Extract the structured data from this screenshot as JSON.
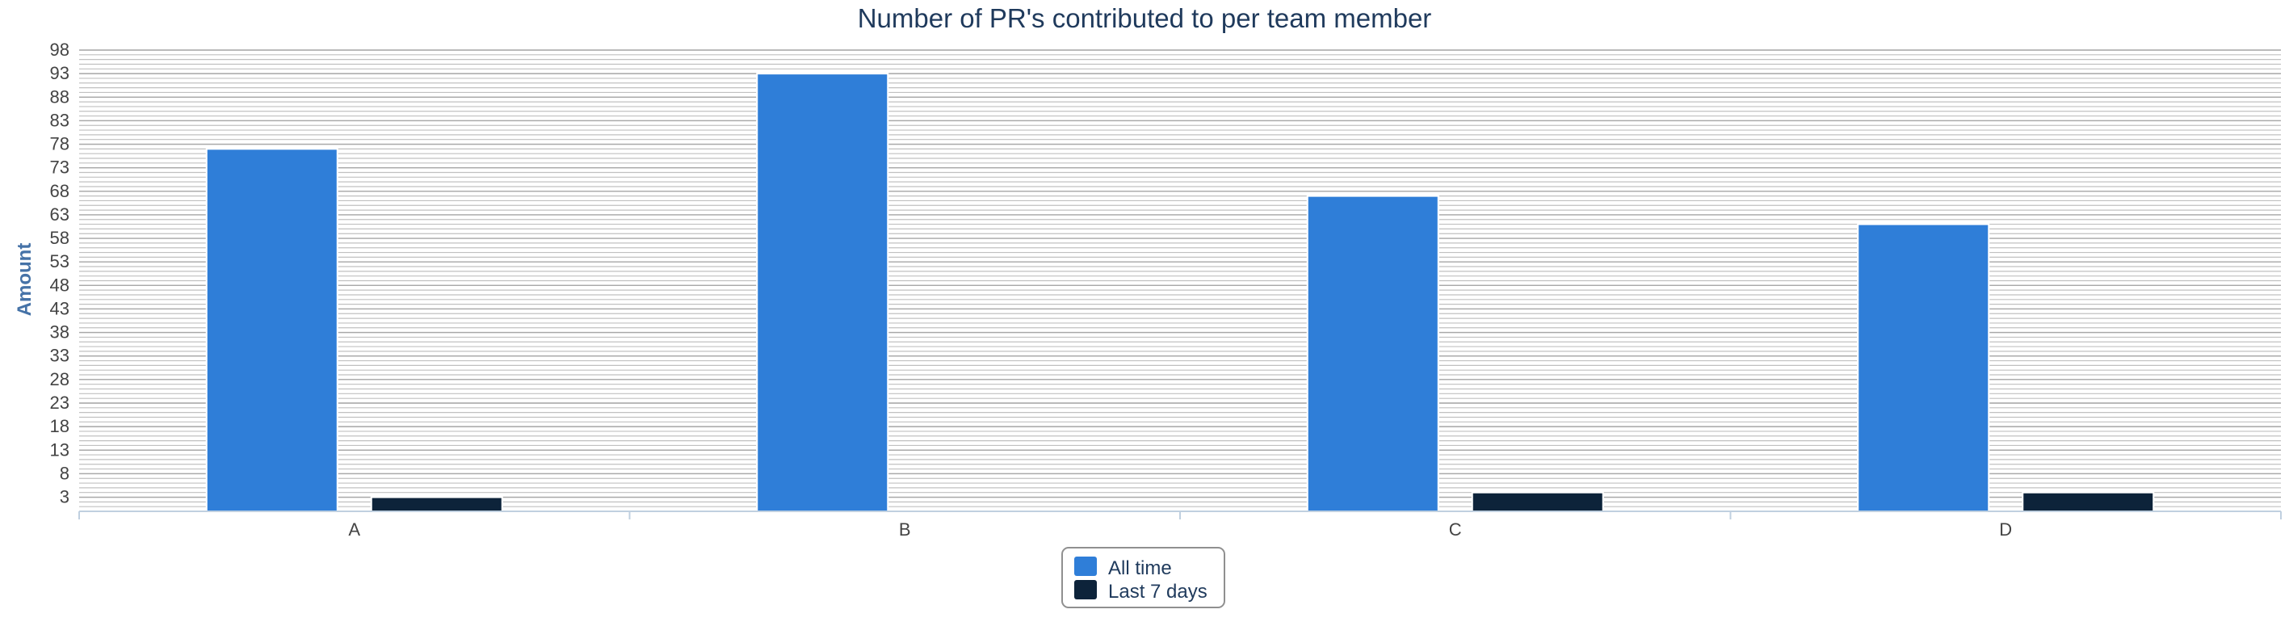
{
  "chart_data": {
    "type": "bar",
    "title": "Number of PR's contributed to per team member",
    "xlabel": "",
    "ylabel": "Amount",
    "categories": [
      "A",
      "B",
      "C",
      "D"
    ],
    "series": [
      {
        "name": "All time",
        "color": "#2f7ed8",
        "values": [
          77,
          93,
          67,
          61
        ]
      },
      {
        "name": "Last 7 days",
        "color": "#0d233a",
        "values": [
          3,
          0,
          4,
          4
        ]
      }
    ],
    "ylim": [
      0,
      98
    ],
    "yticks": [
      3,
      8,
      13,
      18,
      23,
      28,
      33,
      38,
      43,
      48,
      53,
      58,
      63,
      68,
      73,
      78,
      83,
      88,
      93,
      98
    ],
    "grid": true,
    "legend": "bottom-center"
  }
}
